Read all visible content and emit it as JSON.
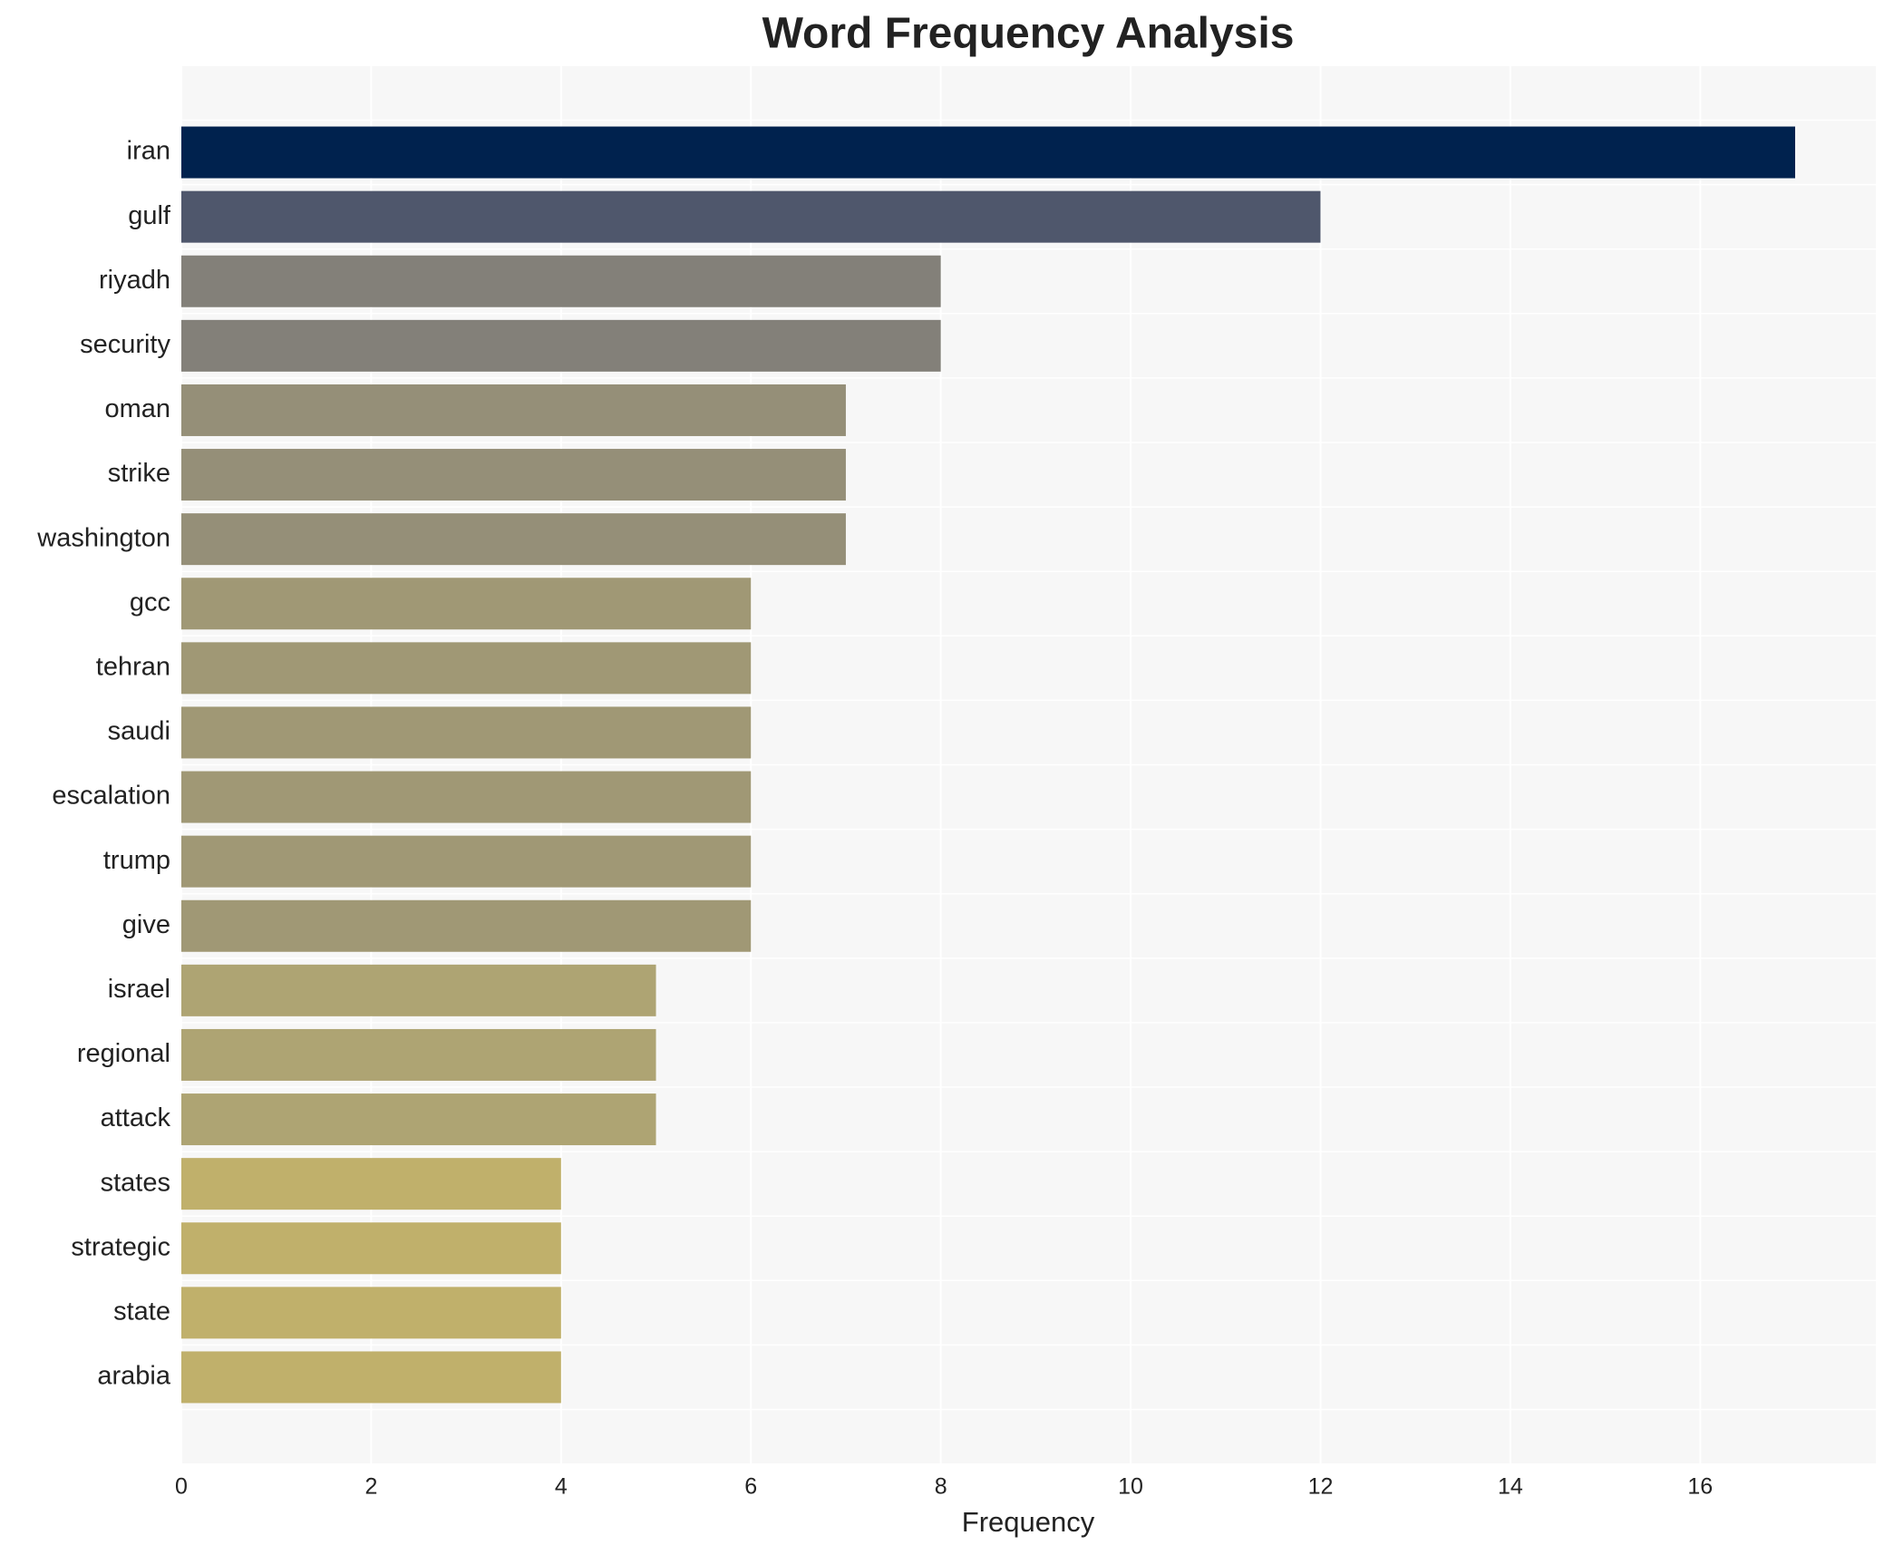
{
  "chart_data": {
    "type": "barh",
    "title": "Word Frequency Analysis",
    "x_label": "Frequency",
    "categories": [
      "iran",
      "gulf",
      "riyadh",
      "security",
      "oman",
      "strike",
      "washington",
      "gcc",
      "tehran",
      "saudi",
      "escalation",
      "trump",
      "give",
      "israel",
      "regional",
      "attack",
      "states",
      "strategic",
      "state",
      "arabia"
    ],
    "values": [
      17,
      12,
      8,
      8,
      7,
      7,
      7,
      6,
      6,
      6,
      6,
      6,
      6,
      5,
      5,
      5,
      4,
      4,
      4,
      4
    ],
    "colors": [
      "#00224e",
      "#4f576c",
      "#838079",
      "#838079",
      "#958f78",
      "#958f78",
      "#958f78",
      "#a09875",
      "#a09875",
      "#a09875",
      "#a09875",
      "#a09875",
      "#a09875",
      "#aea473",
      "#aea473",
      "#aea473",
      "#c0b06b",
      "#c0b06b",
      "#c0b06b",
      "#c0b06b"
    ],
    "xlim": [
      0,
      17.85
    ],
    "xticks": [
      0,
      2,
      4,
      6,
      8,
      10,
      12,
      14,
      16
    ],
    "grid": true
  }
}
